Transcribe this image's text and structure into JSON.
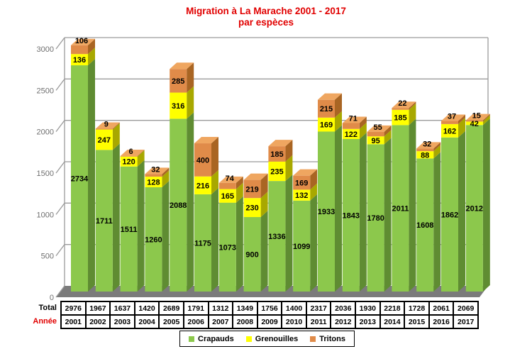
{
  "title": {
    "line1": "Migration à La Marache 2001 - 2017",
    "line2": "par espèces",
    "color": "#e10000"
  },
  "axis": {
    "max": 3000,
    "ticks": [
      0,
      500,
      1000,
      1500,
      2000,
      2500,
      3000
    ]
  },
  "side_table": {
    "total_label": "Total",
    "year_label": "Année",
    "year_label_color": "#e10000"
  },
  "legend": {
    "items": [
      {
        "label": "Crapauds",
        "color": "#8cc84c"
      },
      {
        "label": "Grenouilles",
        "color": "#ffff00"
      },
      {
        "label": "Tritons",
        "color": "#e08b49"
      }
    ]
  },
  "chart_data": {
    "type": "bar",
    "stacked": true,
    "title": "Migration à La Marache 2001 - 2017 par espèces",
    "xlabel": "Année",
    "ylabel": "",
    "ylim": [
      0,
      3000
    ],
    "grid": true,
    "legend_position": "bottom",
    "categories": [
      "2001",
      "2002",
      "2003",
      "2004",
      "2005",
      "2006",
      "2007",
      "2008",
      "2009",
      "2010",
      "2011",
      "2012",
      "2013",
      "2014",
      "2015",
      "2016",
      "2017"
    ],
    "series": [
      {
        "name": "Crapauds",
        "colors": {
          "front": "#8cc84c",
          "side": "#5f8c32",
          "top": "#a5d86e"
        },
        "values": [
          2734,
          1711,
          1511,
          1260,
          2088,
          1175,
          1073,
          900,
          1336,
          1099,
          1933,
          1843,
          1780,
          2011,
          1608,
          1862,
          2012
        ]
      },
      {
        "name": "Grenouilles",
        "colors": {
          "front": "#ffff00",
          "side": "#a8a800",
          "top": "#ffff66"
        },
        "values": [
          136,
          247,
          120,
          128,
          316,
          216,
          165,
          230,
          235,
          132,
          169,
          122,
          95,
          185,
          88,
          162,
          42
        ]
      },
      {
        "name": "Tritons",
        "colors": {
          "front": "#e08b49",
          "side": "#a96523",
          "top": "#efa660"
        },
        "values": [
          106,
          9,
          6,
          32,
          285,
          400,
          74,
          219,
          185,
          169,
          215,
          71,
          55,
          22,
          32,
          37,
          15
        ]
      }
    ],
    "totals": [
      2976,
      1967,
      1637,
      1420,
      2689,
      1791,
      1312,
      1349,
      1756,
      1400,
      2317,
      2036,
      1930,
      2218,
      1728,
      2061,
      2069
    ]
  }
}
